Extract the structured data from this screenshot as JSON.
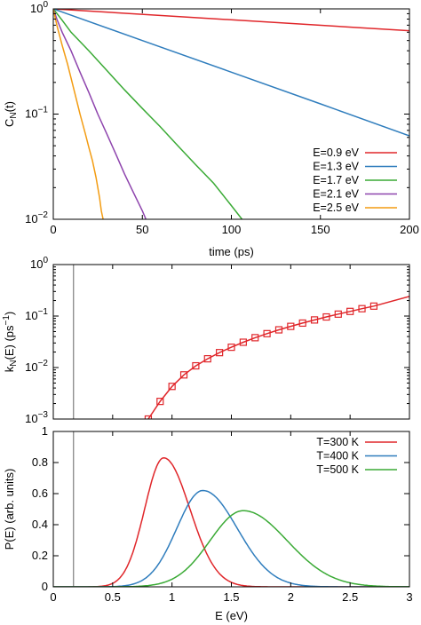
{
  "chart_data": [
    {
      "type": "line",
      "ylabel_main": "C",
      "ylabel_sub": "N",
      "ylabel_tail": "(t)",
      "xlabel": "time (ps)",
      "xlim": [
        0,
        200
      ],
      "ylim": [
        0.01,
        1
      ],
      "yscale": "log",
      "x_ticks": [
        "0",
        "50",
        "100",
        "150",
        "200"
      ],
      "y_ticks": [
        {
          "base": "10",
          "exp": "0",
          "value": 1
        },
        {
          "base": "10",
          "exp": "−1",
          "value": 0.1
        },
        {
          "base": "10",
          "exp": "−2",
          "value": 0.01
        }
      ],
      "grid": false,
      "legend_position": "bottom-right",
      "series": [
        {
          "name": "E=0.9 eV",
          "color": "#e0262a",
          "x": [
            0,
            200
          ],
          "y": [
            1.0,
            0.62
          ]
        },
        {
          "name": "E=1.3 eV",
          "color": "#2f7dbd",
          "x": [
            0,
            50,
            100,
            150,
            200
          ],
          "y": [
            1.0,
            0.5,
            0.25,
            0.125,
            0.062
          ]
        },
        {
          "name": "E=1.7 eV",
          "color": "#3aaa35",
          "x": [
            0,
            5,
            10,
            20,
            30,
            40,
            50,
            60,
            70,
            80,
            90,
            100,
            106
          ],
          "y": [
            1.0,
            0.78,
            0.6,
            0.4,
            0.26,
            0.17,
            0.113,
            0.076,
            0.05,
            0.033,
            0.022,
            0.0135,
            0.01
          ]
        },
        {
          "name": "E=2.1 eV",
          "color": "#8e44ad",
          "x": [
            0,
            2,
            5,
            10,
            15,
            20,
            25,
            30,
            35,
            40,
            45,
            50,
            52
          ],
          "y": [
            1.0,
            0.8,
            0.6,
            0.4,
            0.25,
            0.16,
            0.1,
            0.065,
            0.042,
            0.027,
            0.018,
            0.012,
            0.01
          ]
        },
        {
          "name": "E=2.5 eV",
          "color": "#f39c12",
          "x": [
            0,
            2,
            5,
            8,
            10,
            12,
            15,
            18,
            20,
            22,
            24,
            25,
            26,
            27,
            28
          ],
          "y": [
            1.0,
            0.7,
            0.45,
            0.3,
            0.22,
            0.16,
            0.1,
            0.065,
            0.048,
            0.036,
            0.025,
            0.02,
            0.016,
            0.012,
            0.01
          ]
        }
      ]
    },
    {
      "type": "line",
      "ylabel_main": "k",
      "ylabel_sub": "N",
      "ylabel_tail": "(E) (ps",
      "ylabel_sup": "−1",
      "ylabel_end": ")",
      "xlim": [
        0,
        3
      ],
      "ylim": [
        0.001,
        1
      ],
      "yscale": "log",
      "y_ticks": [
        {
          "base": "10",
          "exp": "0",
          "value": 1
        },
        {
          "base": "10",
          "exp": "−1",
          "value": 0.1
        },
        {
          "base": "10",
          "exp": "−2",
          "value": 0.01
        },
        {
          "base": "10",
          "exp": "−3",
          "value": 0.001
        }
      ],
      "vline_x": 0.17,
      "vline_color": "#888888",
      "series": [
        {
          "name": "",
          "color": "#e0262a",
          "marker": "square",
          "x": [
            0.8,
            0.9,
            1.0,
            1.1,
            1.2,
            1.3,
            1.4,
            1.5,
            1.6,
            1.7,
            1.8,
            1.9,
            2.0,
            2.1,
            2.2,
            2.3,
            2.4,
            2.5,
            2.6,
            2.7,
            3.0
          ],
          "y": [
            0.001,
            0.0022,
            0.0043,
            0.0072,
            0.0108,
            0.0148,
            0.0195,
            0.0248,
            0.031,
            0.038,
            0.0455,
            0.054,
            0.063,
            0.073,
            0.084,
            0.096,
            0.109,
            0.123,
            0.139,
            0.156,
            0.24
          ],
          "marker_x": [
            0.8,
            0.9,
            1.0,
            1.1,
            1.2,
            1.3,
            1.4,
            1.5,
            1.6,
            1.7,
            1.8,
            1.9,
            2.0,
            2.1,
            2.2,
            2.3,
            2.4,
            2.5,
            2.6,
            2.7
          ],
          "marker_y": [
            0.001,
            0.0022,
            0.0043,
            0.0072,
            0.0108,
            0.0148,
            0.0195,
            0.0248,
            0.031,
            0.038,
            0.0455,
            0.054,
            0.063,
            0.073,
            0.084,
            0.096,
            0.109,
            0.123,
            0.139,
            0.156
          ]
        }
      ]
    },
    {
      "type": "line",
      "ylabel": "P(E) (arb. units)",
      "xlabel": "E (eV)",
      "xlim": [
        0,
        3
      ],
      "ylim": [
        0,
        1
      ],
      "x_ticks": [
        "0",
        "0.5",
        "1",
        "1.5",
        "2",
        "2.5",
        "3"
      ],
      "y_ticks": [
        "0",
        "0.2",
        "0.4",
        "0.6",
        "0.8",
        "1"
      ],
      "vline_x": 0.17,
      "vline_color": "#888888",
      "legend_position": "top-right",
      "series": [
        {
          "name": "T=300 K",
          "color": "#e0262a",
          "peak_x": 0.93,
          "peak_y": 0.83,
          "sigma_left": 0.16,
          "sigma_right": 0.22
        },
        {
          "name": "T=400 K",
          "color": "#2f7dbd",
          "peak_x": 1.26,
          "peak_y": 0.62,
          "sigma_left": 0.22,
          "sigma_right": 0.29
        },
        {
          "name": "T=500 K",
          "color": "#3aaa35",
          "peak_x": 1.6,
          "peak_y": 0.49,
          "sigma_left": 0.28,
          "sigma_right": 0.37
        }
      ]
    }
  ]
}
